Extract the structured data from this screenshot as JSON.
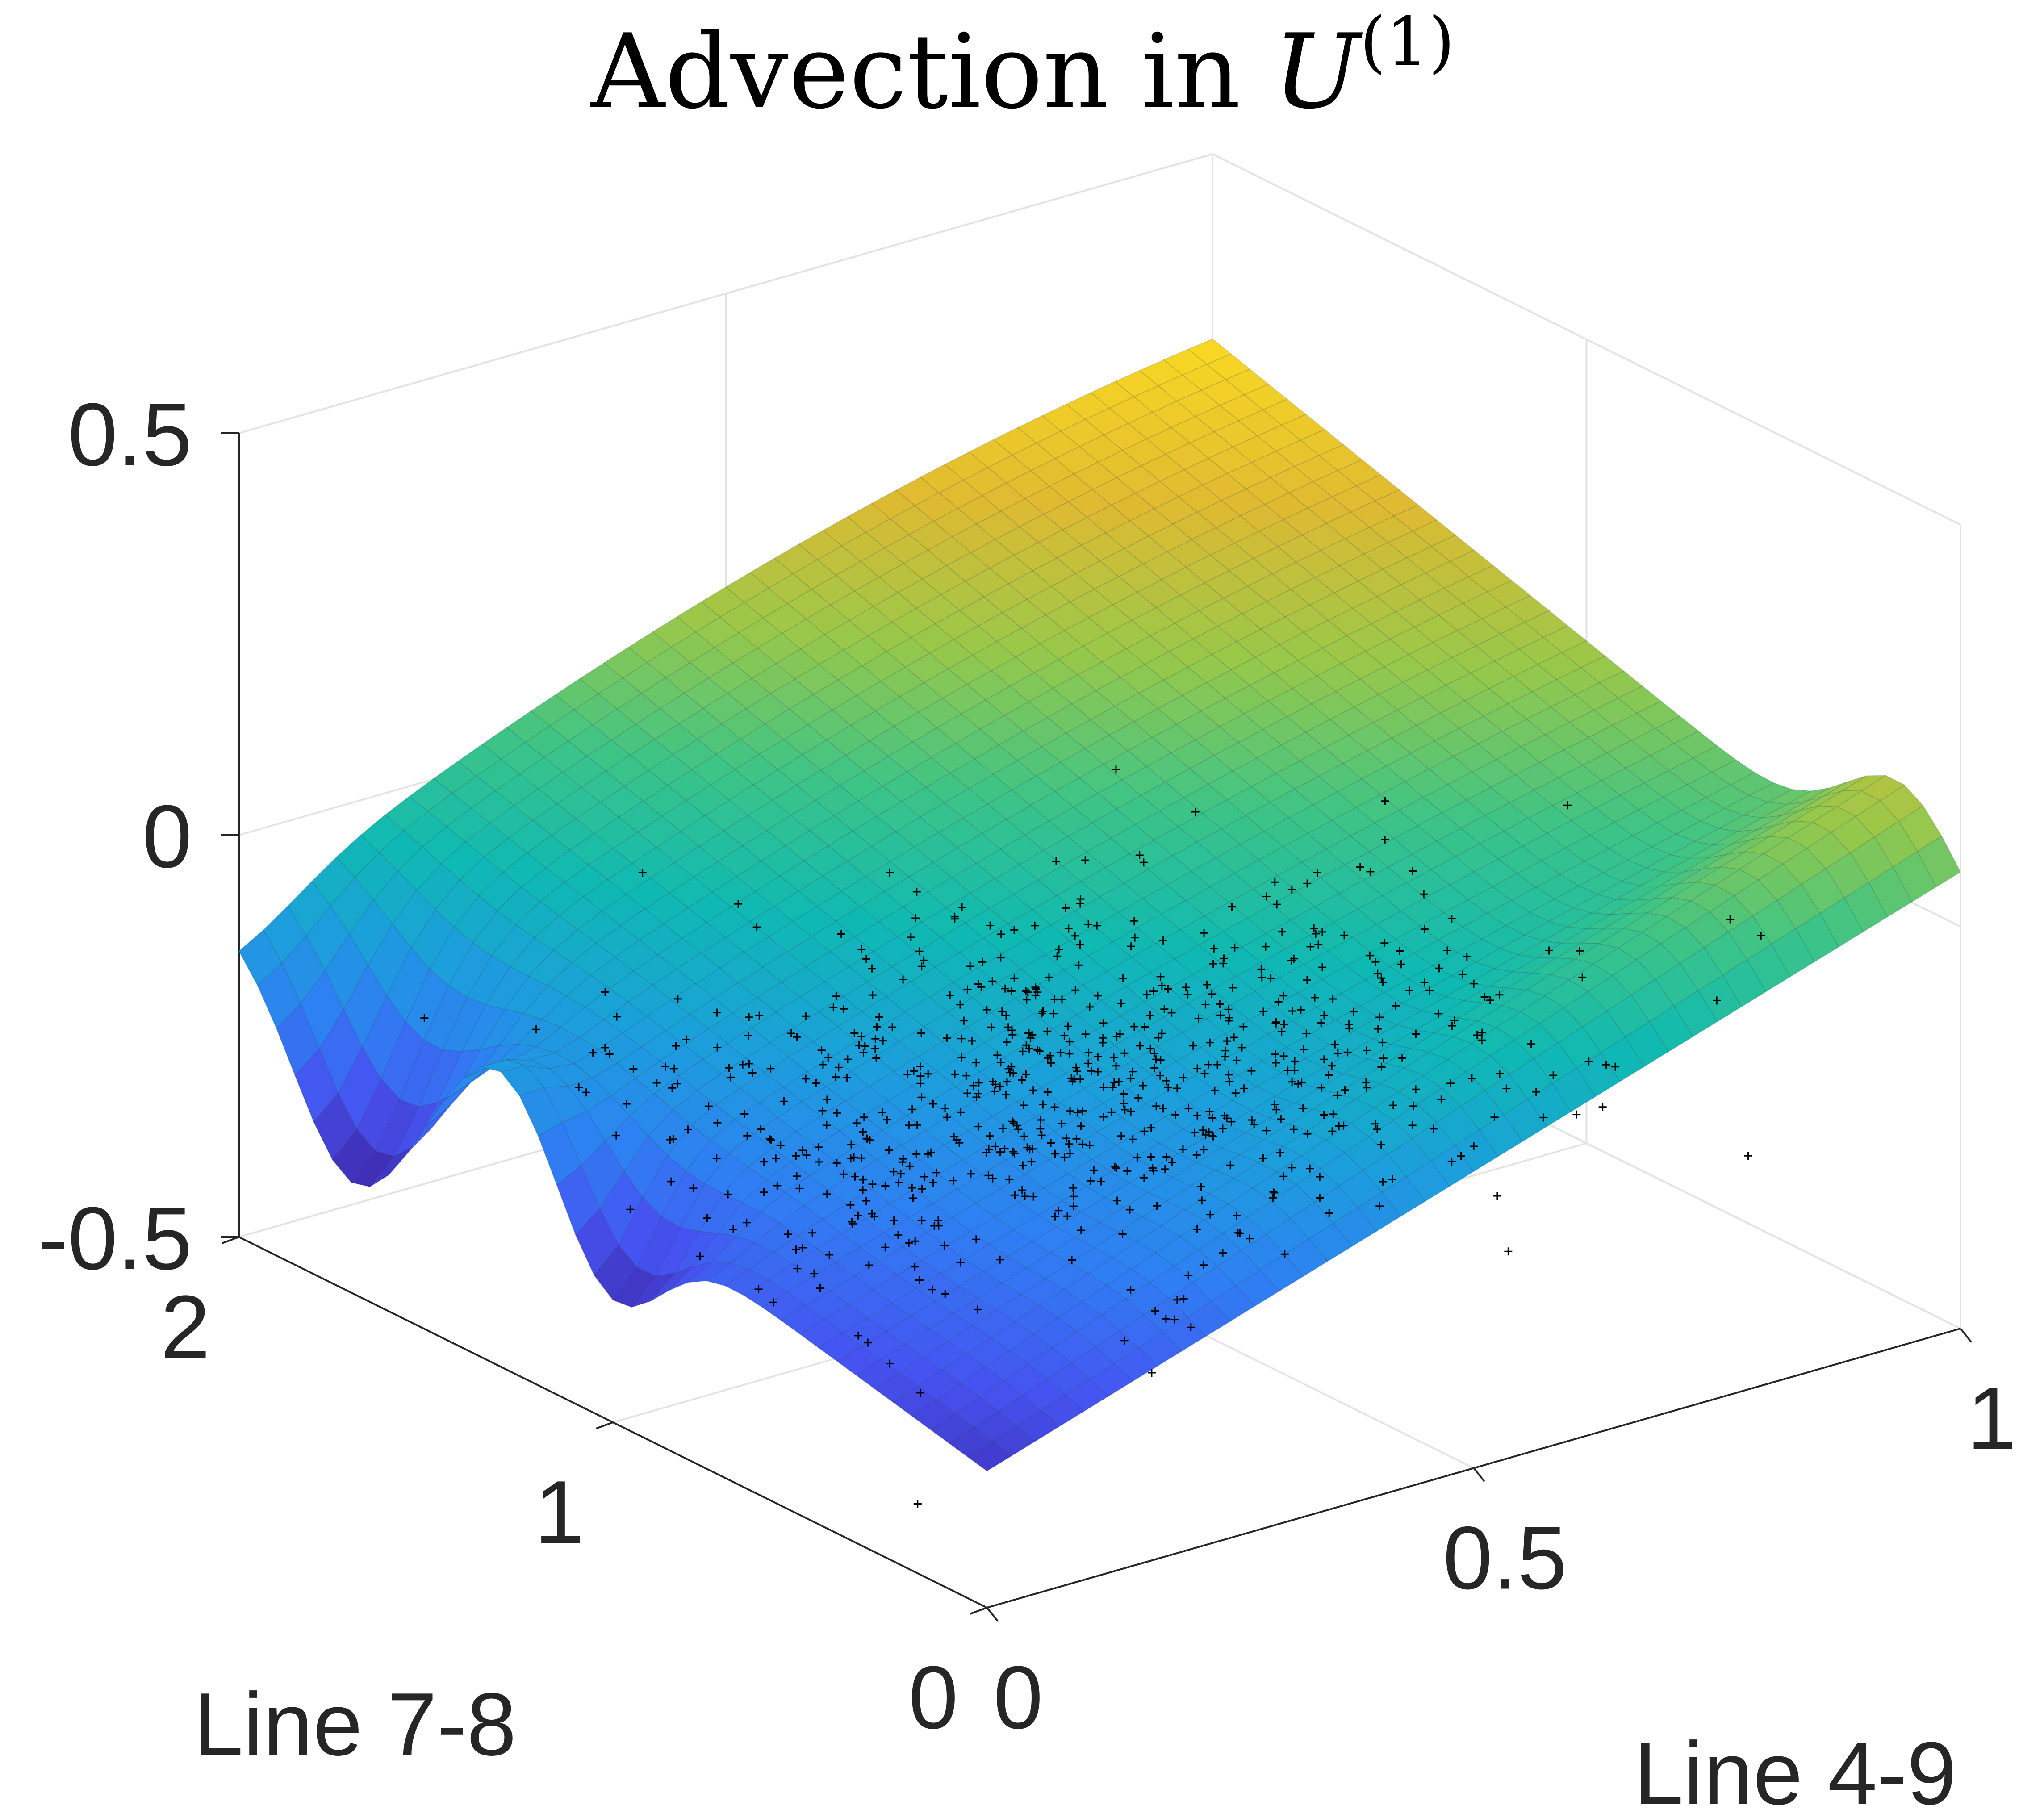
{
  "chart_data": {
    "type": "surface",
    "title": "Advection in U^(1)",
    "title_parts": {
      "prefix": "Advection in ",
      "symbol": "U",
      "superscript": "(1)"
    },
    "xlabel": "Line 4-9",
    "ylabel": "Line 7-8",
    "zlabel": "",
    "xlim": [
      0,
      1
    ],
    "ylim": [
      0,
      2
    ],
    "zlim": [
      -0.5,
      0.5
    ],
    "xticks": [
      0,
      0.5,
      1
    ],
    "xtick_labels": [
      "0",
      "0.5",
      "1"
    ],
    "yticks": [
      0,
      1,
      2
    ],
    "ytick_labels": [
      "0",
      "1",
      "2"
    ],
    "zticks": [
      -0.5,
      0,
      0.5
    ],
    "ztick_labels": [
      "-0.5",
      "0",
      "0.5"
    ],
    "grid": true,
    "colormap": "parula",
    "colormap_stops": [
      "#3e26a8",
      "#4653f1",
      "#2f7ff3",
      "#1c9fdc",
      "#0fb9b3",
      "#3ec486",
      "#98c84a",
      "#e0ba31",
      "#f9d923"
    ],
    "surface_grid_size": [
      41,
      41
    ],
    "surface_corner_values": {
      "x0_y0": -0.33,
      "x1_y0": -0.02,
      "x0_y2": -0.11,
      "x1_y2": 0.27
    },
    "surface_features": [
      {
        "description_value": "deep trough along x=0 near y=1.7",
        "min_z": -0.4
      },
      {
        "description_value": "ridge near y=0.15 rising toward x=1",
        "max_z": 0.12
      }
    ],
    "scatter_series": {
      "name": "",
      "marker": "+",
      "color": "#000000",
      "count": 700,
      "x_center": 0.35,
      "y_center": 0.65,
      "x_spread": 0.22,
      "y_spread": 0.3,
      "z_center": -0.12,
      "z_spread": 0.07
    }
  }
}
